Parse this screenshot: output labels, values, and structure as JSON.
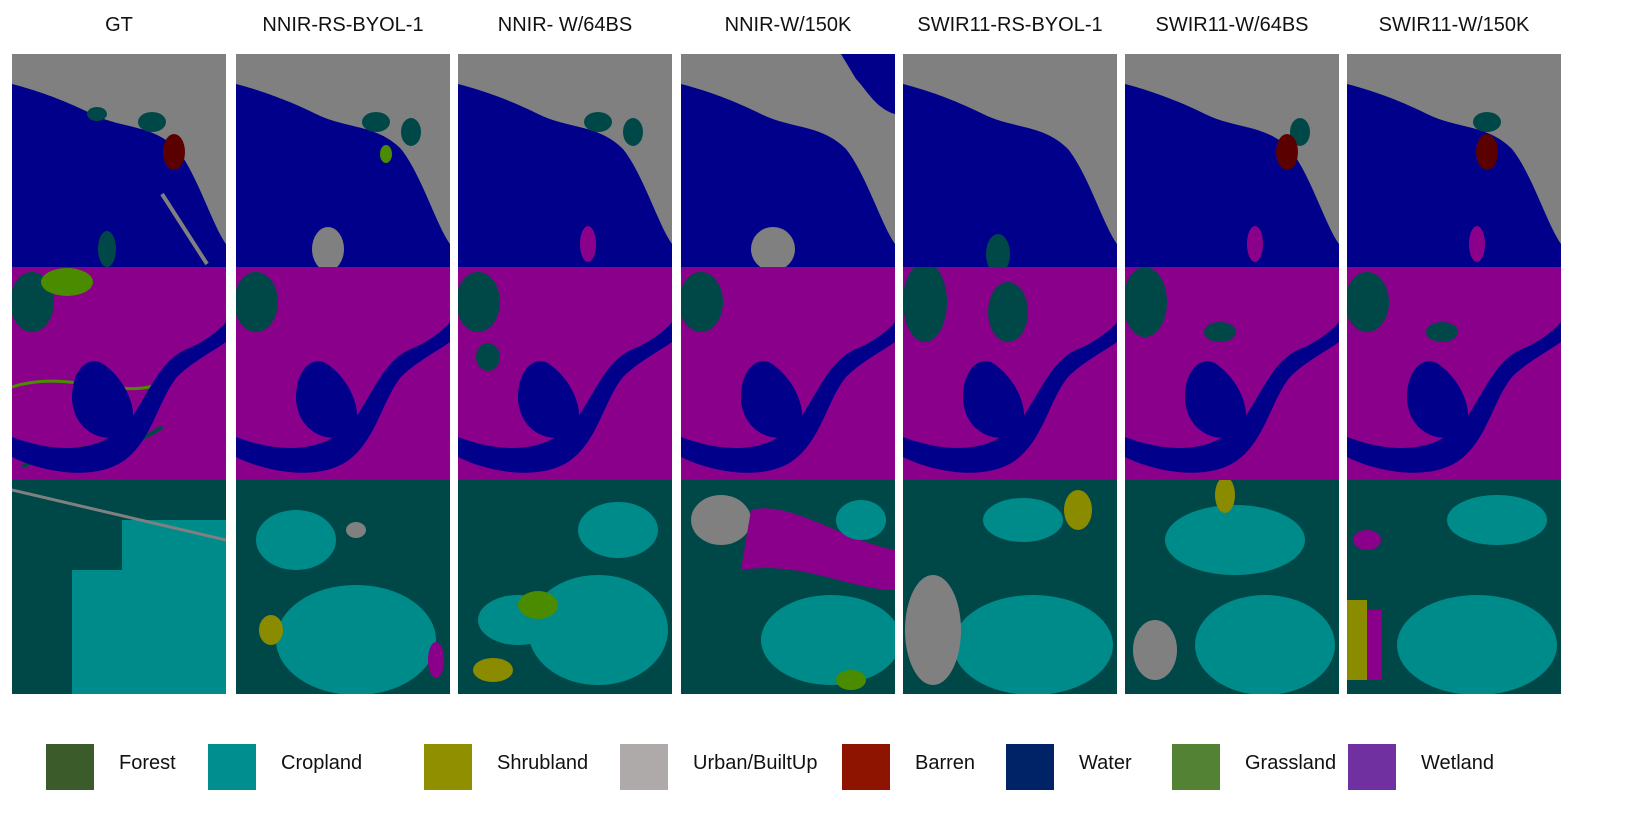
{
  "columns": [
    "GT",
    "NNIR-RS-BYOL-1",
    "NNIR- W/64BS",
    "NNIR-W/150K",
    "SWIR11-RS-BYOL-1",
    "SWIR11-W/64BS",
    "SWIR11-W/150K"
  ],
  "legend": [
    {
      "label": "Forest",
      "color": "#3b5b2b"
    },
    {
      "label": "Cropland",
      "color": "#008e8e"
    },
    {
      "label": "Shrubland",
      "color": "#8f8f00"
    },
    {
      "label": "Urban/BuiltUp",
      "color": "#aeaaaa"
    },
    {
      "label": "Barren",
      "color": "#8e1400"
    },
    {
      "label": "Water",
      "color": "#002266"
    },
    {
      "label": "Grassland",
      "color": "#538235"
    },
    {
      "label": "Wetland",
      "color": "#7030a0"
    }
  ],
  "map_colors": {
    "water": "#00008b",
    "urban": "#808080",
    "forest": "#004848",
    "cropland": "#008b8b",
    "wetland": "#8b008b",
    "grassland": "#4a8b00",
    "shrubland": "#8b8b00",
    "barren": "#5a0000"
  },
  "rows": [
    "coastal-scene",
    "river-meander-scene",
    "cropland-scene"
  ]
}
